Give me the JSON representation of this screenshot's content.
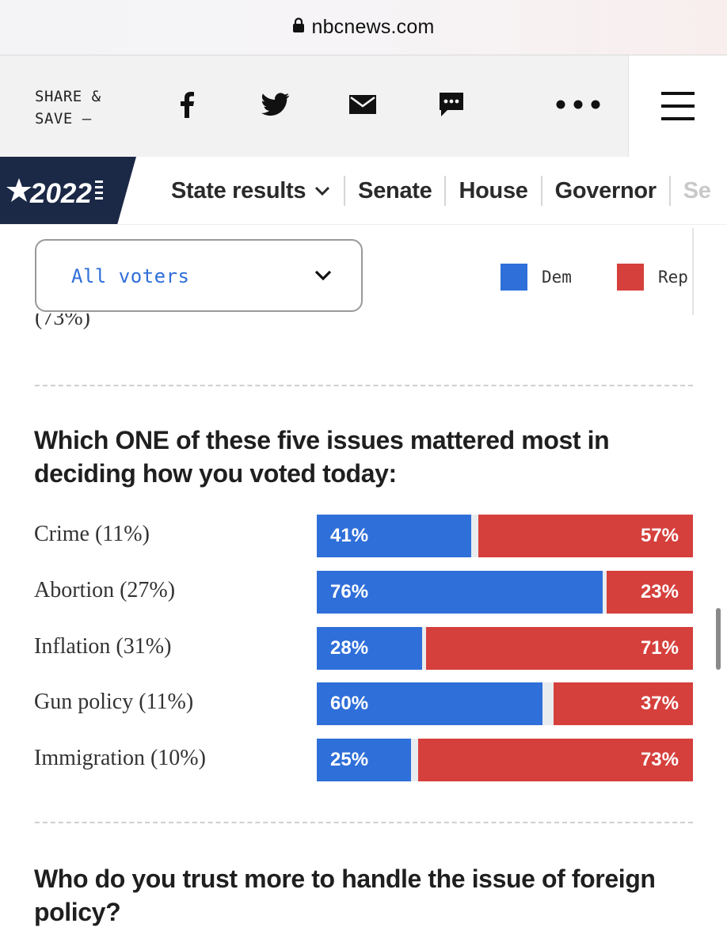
{
  "browser": {
    "url": "nbcnews.com"
  },
  "share_bar": {
    "label": "SHARE &\nSAVE —",
    "icons": [
      "facebook-icon",
      "twitter-icon",
      "email-icon",
      "sms-icon",
      "more-icon",
      "menu-icon"
    ]
  },
  "nav": {
    "logo_text": "2022",
    "items": [
      "State results",
      "Senate",
      "House",
      "Governor",
      "Se"
    ]
  },
  "filter": {
    "selected": "All voters"
  },
  "legend": [
    {
      "label": "Dem",
      "color": "#2f6fd9"
    },
    {
      "label": "Rep",
      "color": "#d5403c"
    }
  ],
  "cutoff_text": "(73%)",
  "questions": [
    "Which ONE of these five issues mattered most in deciding how you voted today:",
    "Who do you trust more to handle the issue of foreign policy?"
  ],
  "chart_data": {
    "type": "bar",
    "orientation": "horizontal-stacked",
    "title": "Which ONE of these five issues mattered most in deciding how you voted today:",
    "categories": [
      "Crime (11%)",
      "Abortion (27%)",
      "Inflation (31%)",
      "Gun policy (11%)",
      "Immigration (10%)"
    ],
    "series": [
      {
        "name": "Dem",
        "color": "#2f6fd9",
        "values": [
          41,
          76,
          28,
          60,
          25
        ]
      },
      {
        "name": "Rep",
        "color": "#d5403c",
        "values": [
          57,
          23,
          71,
          37,
          73
        ]
      }
    ],
    "unit": "%",
    "xlim": [
      0,
      100
    ]
  }
}
